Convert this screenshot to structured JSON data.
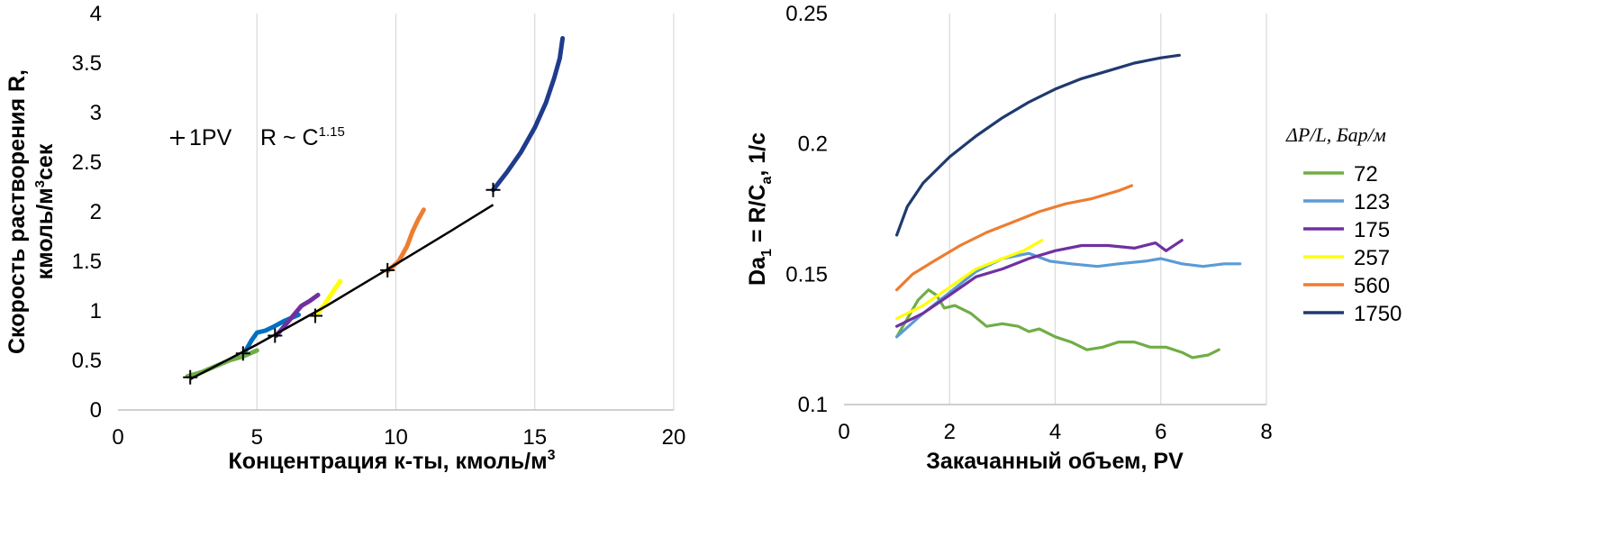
{
  "chart_data": [
    {
      "type": "line",
      "xlabel": "Концентрация к-ты, кмоль/м",
      "xlabel_sup": "3",
      "ylabel_line1": "Скорость растворения R,",
      "ylabel_line2_a": "кмоль/м",
      "ylabel_line2_sup": "3",
      "ylabel_line2_b": "сек",
      "xlim": [
        0,
        20
      ],
      "ylim": [
        0,
        4
      ],
      "xticks": [
        "0",
        "5",
        "10",
        "15",
        "20"
      ],
      "yticks": [
        "0",
        "0.5",
        "1",
        "1.5",
        "2",
        "2.5",
        "3",
        "3.5",
        "4"
      ],
      "grid": "vertical",
      "annotation_marker": "+",
      "annotation_marker_label": "1PV",
      "annotation_law": "R ~ C",
      "annotation_law_sup": "1.15",
      "series": [
        {
          "color": "#70ad47",
          "points": [
            [
              2.5,
              0.34
            ],
            [
              3.0,
              0.38
            ],
            [
              3.5,
              0.44
            ],
            [
              4.0,
              0.5
            ],
            [
              4.5,
              0.54
            ],
            [
              5.0,
              0.6
            ]
          ]
        },
        {
          "color": "#0070c0",
          "points": [
            [
              4.6,
              0.6
            ],
            [
              4.8,
              0.7
            ],
            [
              5.0,
              0.78
            ],
            [
              5.3,
              0.8
            ],
            [
              5.6,
              0.84
            ],
            [
              6.0,
              0.9
            ],
            [
              6.5,
              0.96
            ]
          ]
        },
        {
          "color": "#7030a0",
          "points": [
            [
              5.7,
              0.75
            ],
            [
              6.0,
              0.85
            ],
            [
              6.3,
              0.95
            ],
            [
              6.6,
              1.05
            ],
            [
              6.9,
              1.1
            ],
            [
              7.2,
              1.16
            ]
          ]
        },
        {
          "color": "#ffff00",
          "points": [
            [
              7.1,
              0.95
            ],
            [
              7.4,
              1.05
            ],
            [
              7.7,
              1.18
            ],
            [
              8.0,
              1.3
            ]
          ]
        },
        {
          "color": "#ed7d31",
          "points": [
            [
              9.7,
              1.4
            ],
            [
              10.1,
              1.5
            ],
            [
              10.4,
              1.65
            ],
            [
              10.6,
              1.8
            ],
            [
              10.8,
              1.92
            ],
            [
              11.0,
              2.02
            ]
          ]
        },
        {
          "color": "#1f3b8c",
          "points": [
            [
              13.5,
              2.22
            ],
            [
              14.0,
              2.4
            ],
            [
              14.5,
              2.6
            ],
            [
              15.0,
              2.85
            ],
            [
              15.4,
              3.1
            ],
            [
              15.7,
              3.35
            ],
            [
              15.9,
              3.55
            ],
            [
              16.0,
              3.75
            ]
          ]
        }
      ],
      "fit_line": {
        "color": "#000000",
        "points": [
          [
            2.6,
            0.31
          ],
          [
            5.0,
            0.66
          ],
          [
            7.5,
            1.05
          ],
          [
            10.0,
            1.47
          ],
          [
            12.0,
            1.81
          ],
          [
            13.5,
            2.07
          ]
        ]
      },
      "markers_1pv": [
        [
          2.6,
          0.33
        ],
        [
          4.5,
          0.57
        ],
        [
          5.65,
          0.75
        ],
        [
          7.1,
          0.95
        ],
        [
          9.7,
          1.41
        ],
        [
          13.5,
          2.22
        ]
      ]
    },
    {
      "type": "line",
      "xlabel": "Закачанный объем, PV",
      "ylabel_a": "Da",
      "ylabel_sub1": "1",
      "ylabel_b": " = R/C",
      "ylabel_sub2": "a",
      "ylabel_c": ", 1/c",
      "xlim": [
        0,
        8
      ],
      "ylim": [
        0.1,
        0.25
      ],
      "xticks": [
        "0",
        "2",
        "4",
        "6",
        "8"
      ],
      "yticks": [
        "0.1",
        "0.15",
        "0.2",
        "0.25"
      ],
      "grid": "vertical",
      "legend_title": "ΔP/L, Бар/м",
      "legend_position": "right",
      "series": [
        {
          "name": "72",
          "color": "#70ad47",
          "points": [
            [
              1.0,
              0.126
            ],
            [
              1.2,
              0.133
            ],
            [
              1.4,
              0.14
            ],
            [
              1.6,
              0.144
            ],
            [
              1.75,
              0.142
            ],
            [
              1.9,
              0.137
            ],
            [
              2.1,
              0.138
            ],
            [
              2.4,
              0.135
            ],
            [
              2.7,
              0.13
            ],
            [
              3.0,
              0.131
            ],
            [
              3.3,
              0.13
            ],
            [
              3.5,
              0.128
            ],
            [
              3.7,
              0.129
            ],
            [
              4.0,
              0.126
            ],
            [
              4.3,
              0.124
            ],
            [
              4.6,
              0.121
            ],
            [
              4.9,
              0.122
            ],
            [
              5.2,
              0.124
            ],
            [
              5.5,
              0.124
            ],
            [
              5.8,
              0.122
            ],
            [
              6.1,
              0.122
            ],
            [
              6.4,
              0.12
            ],
            [
              6.6,
              0.118
            ],
            [
              6.9,
              0.119
            ],
            [
              7.1,
              0.121
            ]
          ]
        },
        {
          "name": "123",
          "color": "#5b9bd5",
          "points": [
            [
              1.0,
              0.126
            ],
            [
              1.5,
              0.135
            ],
            [
              2.0,
              0.143
            ],
            [
              2.5,
              0.151
            ],
            [
              3.0,
              0.156
            ],
            [
              3.5,
              0.158
            ],
            [
              3.9,
              0.155
            ],
            [
              4.3,
              0.154
            ],
            [
              4.8,
              0.153
            ],
            [
              5.2,
              0.154
            ],
            [
              5.7,
              0.155
            ],
            [
              6.0,
              0.156
            ],
            [
              6.4,
              0.154
            ],
            [
              6.8,
              0.153
            ],
            [
              7.2,
              0.154
            ],
            [
              7.5,
              0.154
            ]
          ]
        },
        {
          "name": "175",
          "color": "#7030a0",
          "points": [
            [
              1.0,
              0.13
            ],
            [
              1.5,
              0.135
            ],
            [
              2.0,
              0.142
            ],
            [
              2.5,
              0.149
            ],
            [
              3.0,
              0.152
            ],
            [
              3.5,
              0.156
            ],
            [
              4.0,
              0.159
            ],
            [
              4.5,
              0.161
            ],
            [
              5.0,
              0.161
            ],
            [
              5.5,
              0.16
            ],
            [
              5.9,
              0.162
            ],
            [
              6.1,
              0.159
            ],
            [
              6.4,
              0.163
            ]
          ]
        },
        {
          "name": "257",
          "color": "#ffff00",
          "points": [
            [
              1.0,
              0.133
            ],
            [
              1.5,
              0.138
            ],
            [
              2.0,
              0.145
            ],
            [
              2.5,
              0.152
            ],
            [
              3.0,
              0.156
            ],
            [
              3.4,
              0.159
            ],
            [
              3.75,
              0.163
            ]
          ]
        },
        {
          "name": "560",
          "color": "#ed7d31",
          "points": [
            [
              1.0,
              0.144
            ],
            [
              1.3,
              0.15
            ],
            [
              1.7,
              0.155
            ],
            [
              2.2,
              0.161
            ],
            [
              2.7,
              0.166
            ],
            [
              3.2,
              0.17
            ],
            [
              3.7,
              0.174
            ],
            [
              4.2,
              0.177
            ],
            [
              4.7,
              0.179
            ],
            [
              5.2,
              0.182
            ],
            [
              5.45,
              0.184
            ]
          ]
        },
        {
          "name": "1750",
          "color": "#1f3a6e",
          "points": [
            [
              1.0,
              0.165
            ],
            [
              1.2,
              0.176
            ],
            [
              1.5,
              0.185
            ],
            [
              2.0,
              0.195
            ],
            [
              2.5,
              0.203
            ],
            [
              3.0,
              0.21
            ],
            [
              3.5,
              0.216
            ],
            [
              4.0,
              0.221
            ],
            [
              4.5,
              0.225
            ],
            [
              5.0,
              0.228
            ],
            [
              5.5,
              0.231
            ],
            [
              6.0,
              0.233
            ],
            [
              6.35,
              0.234
            ]
          ]
        }
      ]
    }
  ]
}
